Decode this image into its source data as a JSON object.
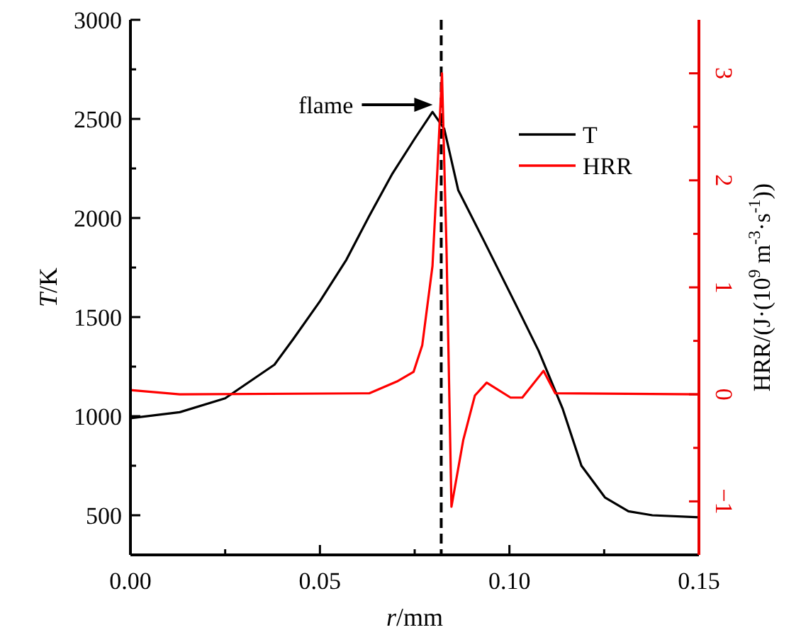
{
  "chart_data": {
    "type": "line",
    "xlabel": "r/mm",
    "ylabel": "T/K",
    "y2label": "HRR/(J·(10$^{9}$ m$^{-3}$·s$^{-1}$))",
    "xlim": [
      0,
      0.15
    ],
    "xticks": [
      {
        "value": 0,
        "label": "0.00"
      },
      {
        "value": 0.025,
        "label": null
      },
      {
        "value": 0.05,
        "label": "0.05"
      },
      {
        "value": 0.075,
        "label": null
      },
      {
        "value": 0.1,
        "label": "0.10"
      },
      {
        "value": 0.125,
        "label": null
      },
      {
        "value": 0.15,
        "label": "0.15"
      }
    ],
    "ylim": [
      300,
      3000
    ],
    "yticks": [
      500,
      {
        "value": 750,
        "label": null
      },
      1000,
      {
        "value": 1250,
        "label": null
      },
      1500,
      {
        "value": 1750,
        "label": null
      },
      2000,
      {
        "value": 2250,
        "label": null
      },
      2500,
      {
        "value": 2750,
        "label": null
      },
      3000
    ],
    "y2lim": [
      -1.5,
      3.5
    ],
    "y2ticks": [
      {
        "value": -1,
        "label": "−1"
      },
      {
        "value": -0.5,
        "label": null
      },
      0,
      {
        "value": 0.5,
        "label": null
      },
      1,
      {
        "value": 1.5,
        "label": null
      },
      2,
      {
        "value": 2.5,
        "label": null
      },
      3
    ],
    "legend": "top right",
    "grid": false,
    "marker": "none",
    "line_style": "solid",
    "ref_lines": [
      {
        "axis": "x",
        "value": 0.082,
        "color": "#000000",
        "line_style": "dashed"
      }
    ],
    "annotations": [
      "flame"
    ],
    "series": [
      {
        "name": "T",
        "color": "#000000",
        "x": [
          0,
          0.013,
          0.025,
          0.038,
          0.043,
          0.05,
          0.057,
          0.063,
          0.069,
          0.075,
          0.0797,
          0.0828,
          0.0865,
          0.0934,
          0.1015,
          0.1077,
          0.114,
          0.119,
          0.1252,
          0.1314,
          0.1377,
          0.15
        ],
        "values": [
          990,
          1020,
          1090,
          1260,
          1390,
          1580,
          1790,
          2010,
          2220,
          2400,
          2535,
          2450,
          2140,
          1880,
          1570,
          1330,
          1040,
          750,
          590,
          520,
          500,
          490
        ]
      },
      {
        "name": "HRR",
        "color": "#ff0000",
        "axis": "y2",
        "x": [
          0,
          0.013,
          0.063,
          0.0703,
          0.0747,
          0.077,
          0.0797,
          0.081,
          0.0822,
          0.0834,
          0.0847,
          0.0878,
          0.0909,
          0.094,
          0.1003,
          0.1034,
          0.109,
          0.1121,
          0.15
        ],
        "values": [
          0.04,
          0,
          0.01,
          0.12,
          0.21,
          0.46,
          1.2,
          2.1,
          3.0,
          1.36,
          -1.05,
          -0.43,
          -0.01,
          0.11,
          -0.03,
          -0.03,
          0.22,
          0.01,
          0
        ]
      }
    ]
  }
}
